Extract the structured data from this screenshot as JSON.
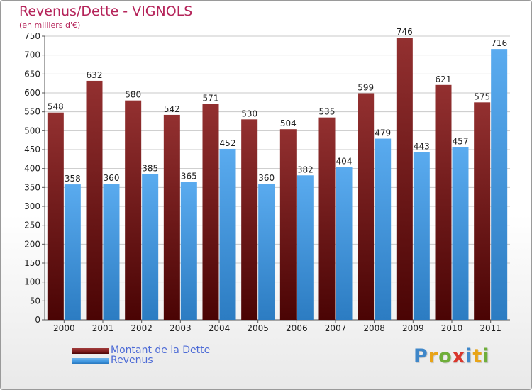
{
  "title": "Revenus/Dette - VIGNOLS",
  "subtitle": "(en milliers d'€)",
  "logo": {
    "text": "Proxiti",
    "letters": [
      {
        "ch": "P",
        "color": "#3f87c9"
      },
      {
        "ch": "r",
        "color": "#e8a417"
      },
      {
        "ch": "o",
        "color": "#6fae3a"
      },
      {
        "ch": "x",
        "color": "#d9362c"
      },
      {
        "ch": "i",
        "color": "#3f87c9"
      },
      {
        "ch": "t",
        "color": "#e8a417"
      },
      {
        "ch": "i",
        "color": "#6fae3a"
      }
    ]
  },
  "colors": {
    "title": "#b5245a",
    "dette": "#7b1a1a",
    "revenus": "#3e96e0",
    "legend_text": "#4d6bd6",
    "axis": "#555555",
    "grid": "#c8c8c8"
  },
  "chart_data": {
    "type": "bar",
    "categories": [
      "2000",
      "2001",
      "2002",
      "2003",
      "2004",
      "2005",
      "2006",
      "2007",
      "2008",
      "2009",
      "2010",
      "2011"
    ],
    "series": [
      {
        "name": "Montant de la Dette",
        "values": [
          548,
          632,
          580,
          542,
          571,
          530,
          504,
          535,
          599,
          746,
          621,
          575
        ]
      },
      {
        "name": "Revenus",
        "values": [
          358,
          360,
          385,
          365,
          452,
          360,
          382,
          404,
          479,
          443,
          457,
          716
        ]
      }
    ],
    "ylim": [
      0,
      750
    ],
    "yticks": [
      0,
      50,
      100,
      150,
      200,
      250,
      300,
      350,
      400,
      450,
      500,
      550,
      600,
      650,
      700,
      750
    ],
    "grid": true,
    "legend": "bottom-left"
  }
}
